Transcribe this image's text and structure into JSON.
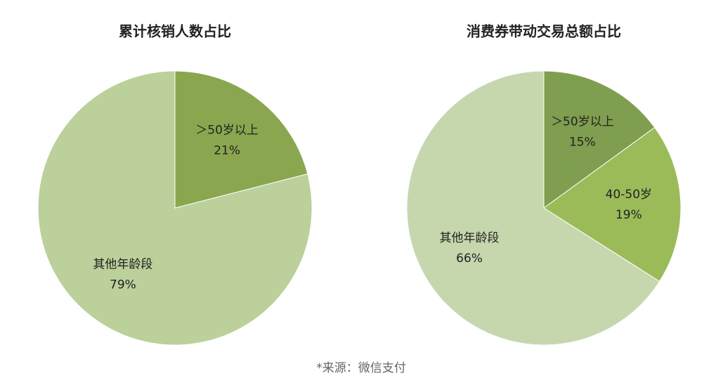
{
  "chart_data": [
    {
      "type": "pie",
      "title": "累计核销人数占比",
      "categories": [
        "＞50岁以上",
        "其他年龄段"
      ],
      "values": [
        21,
        79
      ],
      "value_labels": [
        "21%",
        "79%"
      ],
      "colors": [
        "#8aa74f",
        "#bcd09b"
      ]
    },
    {
      "type": "pie",
      "title": "消费券带动交易总额占比",
      "categories": [
        "＞50岁以上",
        "40-50岁",
        "其他年龄段"
      ],
      "values": [
        15,
        19,
        66
      ],
      "value_labels": [
        "15%",
        "19%",
        "66%"
      ],
      "colors": [
        "#7f9e4f",
        "#9bbb59",
        "#c6d7ad"
      ]
    }
  ],
  "source": "*来源：微信支付"
}
